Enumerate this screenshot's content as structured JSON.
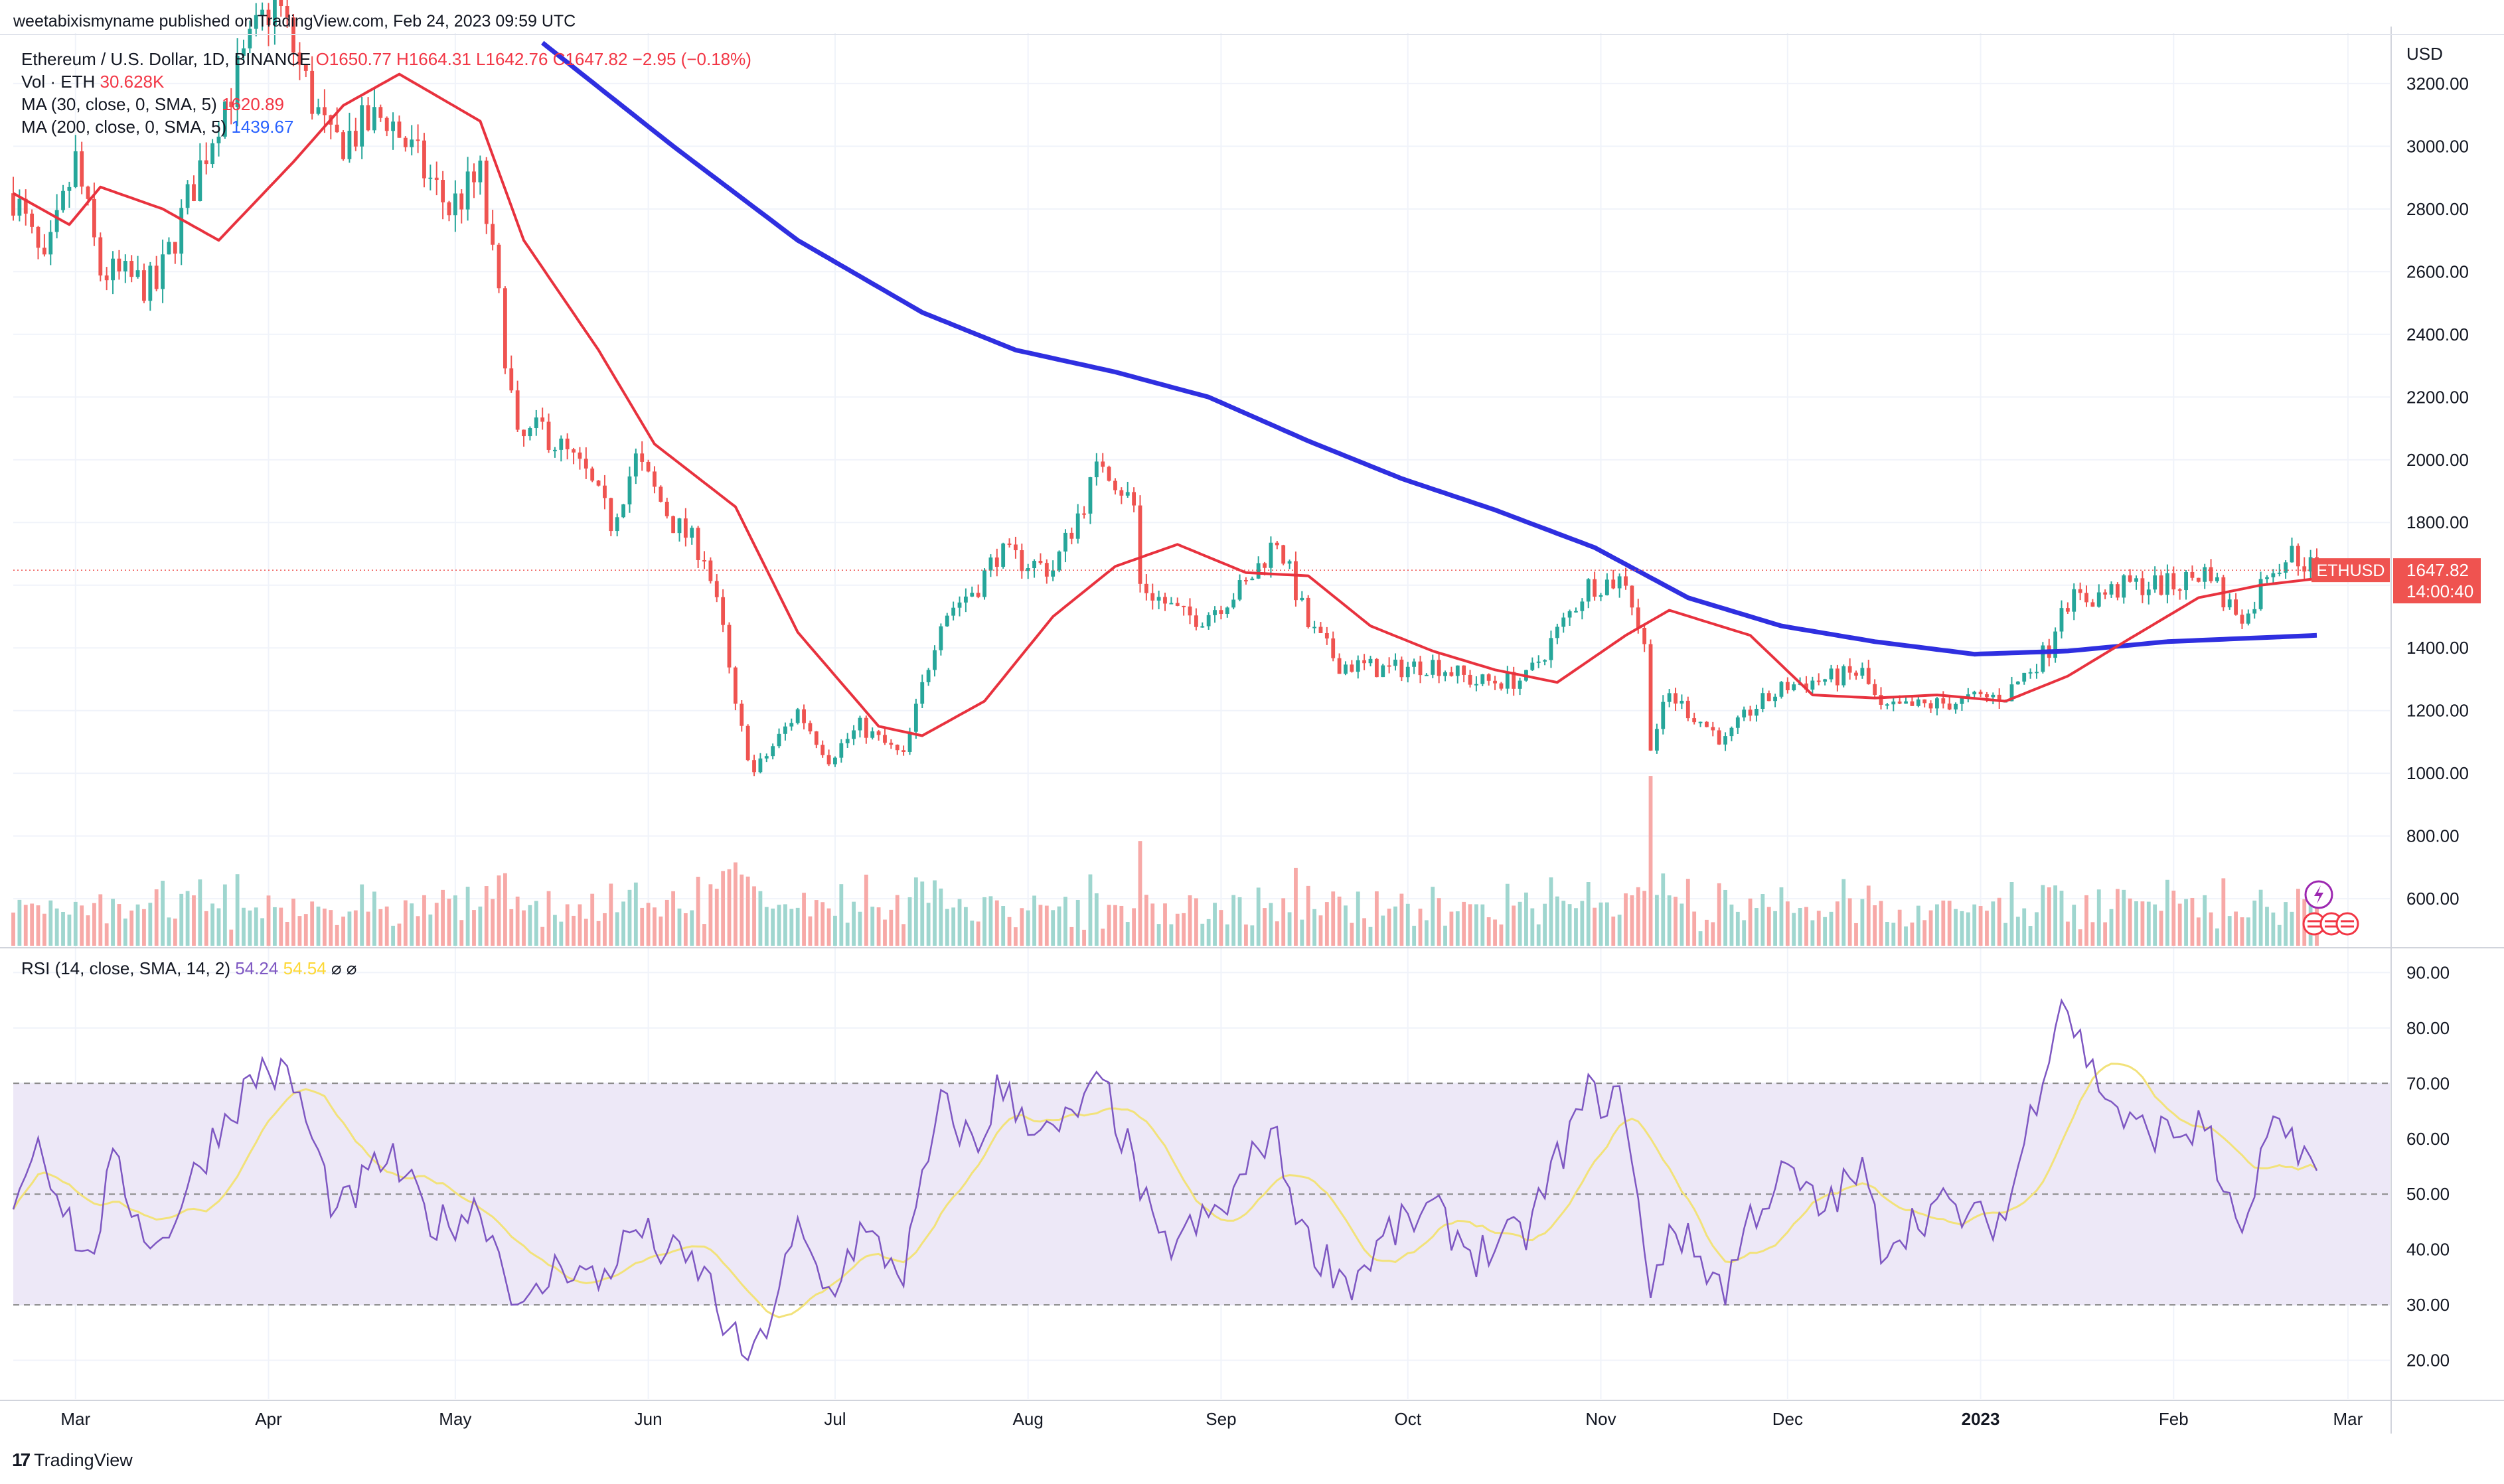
{
  "header": {
    "published": "weetabixismyname published on TradingView.com, Feb 24, 2023 09:59 UTC"
  },
  "legend": {
    "symbol": "Ethereum / U.S. Dollar, 1D, BINANCE",
    "ohlc": "O1650.77  H1664.31  L1642.76  C1647.82  −2.95 (−0.18%)",
    "vol_label": "Vol · ETH",
    "vol_value": "30.628K",
    "ma30_label": "MA (30, close, 0, SMA, 5)",
    "ma30_value": "1620.89",
    "ma200_label": "MA (200, close, 0, SMA, 5)",
    "ma200_value": "1439.67",
    "rsi_label": "RSI (14, close, SMA, 14, 2)",
    "rsi_value": "54.24",
    "rsi_ma_value": "54.54",
    "rsi_icons": "⌀  ⌀"
  },
  "price_axis": {
    "currency": "USD",
    "ticks": [
      "3200.00",
      "3000.00",
      "2800.00",
      "2600.00",
      "2400.00",
      "2200.00",
      "2000.00",
      "1800.00",
      "1600.00",
      "1400.00",
      "1200.00",
      "1000.00",
      "800.00",
      "600.00"
    ]
  },
  "rsi_axis": {
    "ticks": [
      "90.00",
      "80.00",
      "70.00",
      "60.00",
      "50.00",
      "40.00",
      "30.00",
      "20.00"
    ]
  },
  "time_axis": {
    "labels": [
      "Mar",
      "Apr",
      "May",
      "Jun",
      "Jul",
      "Aug",
      "Sep",
      "Oct",
      "Nov",
      "Dec",
      "2023",
      "Feb",
      "Mar"
    ]
  },
  "price_label": {
    "symbol": "ETHUSD",
    "price": "1647.82",
    "countdown": "14:00:40"
  },
  "branding": {
    "logo": "17",
    "name": "TradingView"
  },
  "colors": {
    "up": "#26a69a",
    "down": "#ef5350",
    "ma30": "#e8323e",
    "ma200": "#2f2fe0",
    "rsi": "#7e57c2",
    "rsi_ma": "#f2e27a",
    "rsi_band": "#ede8f7",
    "vol_up": "#9fd6cf",
    "vol_down": "#f7a9a7"
  },
  "chart_data": {
    "type": "candlestick",
    "title": "Ethereum / U.S. Dollar, 1D, BINANCE",
    "x_range": [
      "2022-02-19",
      "2023-02-24"
    ],
    "price_ylim": [
      450,
      3350
    ],
    "rsi_ylim": [
      13,
      94
    ],
    "rsi_bands": [
      30,
      50,
      70
    ],
    "last_close": 1647.82,
    "price_anchors": [
      [
        "2022-02-19",
        2850
      ],
      [
        "2022-02-24",
        2600
      ],
      [
        "2022-03-01",
        2950
      ],
      [
        "2022-03-05",
        2600
      ],
      [
        "2022-03-14",
        2550
      ],
      [
        "2022-03-24",
        3100
      ],
      [
        "2022-04-02",
        3480
      ],
      [
        "2022-04-06",
        3250
      ],
      [
        "2022-04-11",
        3000
      ],
      [
        "2022-04-20",
        3100
      ],
      [
        "2022-04-30",
        2800
      ],
      [
        "2022-05-05",
        2900
      ],
      [
        "2022-05-08",
        2500
      ],
      [
        "2022-05-11",
        2050
      ],
      [
        "2022-05-15",
        2100
      ],
      [
        "2022-05-22",
        1950
      ],
      [
        "2022-05-26",
        1800
      ],
      [
        "2022-05-30",
        2000
      ],
      [
        "2022-06-05",
        1800
      ],
      [
        "2022-06-10",
        1700
      ],
      [
        "2022-06-13",
        1450
      ],
      [
        "2022-06-15",
        1200
      ],
      [
        "2022-06-18",
        1000
      ],
      [
        "2022-06-25",
        1200
      ],
      [
        "2022-06-30",
        1050
      ],
      [
        "2022-07-05",
        1150
      ],
      [
        "2022-07-12",
        1050
      ],
      [
        "2022-07-18",
        1500
      ],
      [
        "2022-07-24",
        1600
      ],
      [
        "2022-07-27",
        1700
      ],
      [
        "2022-08-05",
        1650
      ],
      [
        "2022-08-13",
        2000
      ],
      [
        "2022-08-18",
        1850
      ],
      [
        "2022-08-19",
        1600
      ],
      [
        "2022-08-26",
        1500
      ],
      [
        "2022-08-29",
        1500
      ],
      [
        "2022-09-05",
        1600
      ],
      [
        "2022-09-10",
        1750
      ],
      [
        "2022-09-15",
        1470
      ],
      [
        "2022-09-20",
        1350
      ],
      [
        "2022-09-28",
        1330
      ],
      [
        "2022-10-05",
        1350
      ],
      [
        "2022-10-12",
        1290
      ],
      [
        "2022-10-20",
        1300
      ],
      [
        "2022-10-25",
        1450
      ],
      [
        "2022-10-30",
        1600
      ],
      [
        "2022-11-05",
        1620
      ],
      [
        "2022-11-08",
        1400
      ],
      [
        "2022-11-09",
        1100
      ],
      [
        "2022-11-12",
        1250
      ],
      [
        "2022-11-21",
        1100
      ],
      [
        "2022-11-25",
        1200
      ],
      [
        "2022-12-01",
        1280
      ],
      [
        "2022-12-13",
        1320
      ],
      [
        "2022-12-16",
        1200
      ],
      [
        "2022-12-25",
        1220
      ],
      [
        "2023-01-05",
        1250
      ],
      [
        "2023-01-12",
        1400
      ],
      [
        "2023-01-14",
        1550
      ],
      [
        "2023-01-19",
        1560
      ],
      [
        "2023-01-25",
        1600
      ],
      [
        "2023-02-01",
        1600
      ],
      [
        "2023-02-07",
        1650
      ],
      [
        "2023-02-09",
        1550
      ],
      [
        "2023-02-13",
        1500
      ],
      [
        "2023-02-16",
        1650
      ],
      [
        "2023-02-20",
        1700
      ],
      [
        "2023-02-24",
        1648
      ]
    ],
    "ma30_anchors": [
      [
        "2022-02-19",
        2850
      ],
      [
        "2022-02-28",
        2750
      ],
      [
        "2022-03-05",
        2870
      ],
      [
        "2022-03-15",
        2800
      ],
      [
        "2022-03-24",
        2700
      ],
      [
        "2022-04-05",
        2950
      ],
      [
        "2022-04-13",
        3130
      ],
      [
        "2022-04-22",
        3230
      ],
      [
        "2022-05-05",
        3080
      ],
      [
        "2022-05-12",
        2700
      ],
      [
        "2022-05-24",
        2350
      ],
      [
        "2022-06-02",
        2050
      ],
      [
        "2022-06-15",
        1850
      ],
      [
        "2022-06-25",
        1450
      ],
      [
        "2022-07-08",
        1150
      ],
      [
        "2022-07-15",
        1120
      ],
      [
        "2022-07-25",
        1230
      ],
      [
        "2022-08-05",
        1500
      ],
      [
        "2022-08-15",
        1660
      ],
      [
        "2022-08-25",
        1730
      ],
      [
        "2022-09-05",
        1640
      ],
      [
        "2022-09-15",
        1630
      ],
      [
        "2022-09-25",
        1470
      ],
      [
        "2022-10-05",
        1390
      ],
      [
        "2022-10-15",
        1330
      ],
      [
        "2022-10-25",
        1290
      ],
      [
        "2022-11-05",
        1440
      ],
      [
        "2022-11-12",
        1520
      ],
      [
        "2022-11-25",
        1440
      ],
      [
        "2022-12-05",
        1250
      ],
      [
        "2022-12-15",
        1240
      ],
      [
        "2022-12-25",
        1250
      ],
      [
        "2023-01-05",
        1230
      ],
      [
        "2023-01-15",
        1310
      ],
      [
        "2023-01-25",
        1430
      ],
      [
        "2023-02-05",
        1560
      ],
      [
        "2023-02-15",
        1600
      ],
      [
        "2023-02-24",
        1621
      ]
    ],
    "ma200_anchors": [
      [
        "2022-05-15",
        3330
      ],
      [
        "2022-06-05",
        3000
      ],
      [
        "2022-06-25",
        2700
      ],
      [
        "2022-07-15",
        2470
      ],
      [
        "2022-07-30",
        2350
      ],
      [
        "2022-08-15",
        2280
      ],
      [
        "2022-08-30",
        2200
      ],
      [
        "2022-09-15",
        2060
      ],
      [
        "2022-09-30",
        1940
      ],
      [
        "2022-10-15",
        1840
      ],
      [
        "2022-10-31",
        1720
      ],
      [
        "2022-11-15",
        1560
      ],
      [
        "2022-11-30",
        1470
      ],
      [
        "2022-12-15",
        1420
      ],
      [
        "2022-12-31",
        1380
      ],
      [
        "2023-01-15",
        1390
      ],
      [
        "2023-01-31",
        1420
      ],
      [
        "2023-02-24",
        1440
      ]
    ],
    "rsi_anchors": [
      [
        "2022-02-19",
        50
      ],
      [
        "2022-02-23",
        60
      ],
      [
        "2022-03-03",
        37
      ],
      [
        "2022-03-07",
        55
      ],
      [
        "2022-03-14",
        40
      ],
      [
        "2022-03-24",
        62
      ],
      [
        "2022-03-31",
        73
      ],
      [
        "2022-04-05",
        70
      ],
      [
        "2022-04-12",
        46
      ],
      [
        "2022-04-20",
        57
      ],
      [
        "2022-04-28",
        44
      ],
      [
        "2022-05-05",
        48
      ],
      [
        "2022-05-12",
        28
      ],
      [
        "2022-05-18",
        38
      ],
      [
        "2022-05-24",
        34
      ],
      [
        "2022-05-30",
        44
      ],
      [
        "2022-06-03",
        40
      ],
      [
        "2022-06-10",
        36
      ],
      [
        "2022-06-14",
        24
      ],
      [
        "2022-06-18",
        20
      ],
      [
        "2022-06-25",
        43
      ],
      [
        "2022-06-30",
        32
      ],
      [
        "2022-07-05",
        43
      ],
      [
        "2022-07-12",
        36
      ],
      [
        "2022-07-18",
        66
      ],
      [
        "2022-07-24",
        58
      ],
      [
        "2022-07-27",
        69
      ],
      [
        "2022-08-05",
        60
      ],
      [
        "2022-08-13",
        70
      ],
      [
        "2022-08-18",
        55
      ],
      [
        "2022-08-22",
        40
      ],
      [
        "2022-08-28",
        44
      ],
      [
        "2022-09-02",
        48
      ],
      [
        "2022-09-09",
        62
      ],
      [
        "2022-09-15",
        41
      ],
      [
        "2022-09-22",
        34
      ],
      [
        "2022-09-28",
        43
      ],
      [
        "2022-10-05",
        47
      ],
      [
        "2022-10-12",
        39
      ],
      [
        "2022-10-20",
        43
      ],
      [
        "2022-10-25",
        56
      ],
      [
        "2022-10-30",
        68
      ],
      [
        "2022-11-05",
        66
      ],
      [
        "2022-11-09",
        30
      ],
      [
        "2022-11-12",
        45
      ],
      [
        "2022-11-21",
        33
      ],
      [
        "2022-11-25",
        46
      ],
      [
        "2022-12-01",
        54
      ],
      [
        "2022-12-06",
        47
      ],
      [
        "2022-12-13",
        54
      ],
      [
        "2022-12-16",
        41
      ],
      [
        "2022-12-25",
        48
      ],
      [
        "2023-01-01",
        45
      ],
      [
        "2023-01-05",
        46
      ],
      [
        "2023-01-14",
        86
      ],
      [
        "2023-01-19",
        72
      ],
      [
        "2023-01-25",
        62
      ],
      [
        "2023-02-01",
        61
      ],
      [
        "2023-02-07",
        62
      ],
      [
        "2023-02-09",
        48
      ],
      [
        "2023-02-13",
        44
      ],
      [
        "2023-02-16",
        60
      ],
      [
        "2023-02-20",
        61
      ],
      [
        "2023-02-24",
        54.24
      ]
    ],
    "rsi_ma_last": 54.54
  }
}
